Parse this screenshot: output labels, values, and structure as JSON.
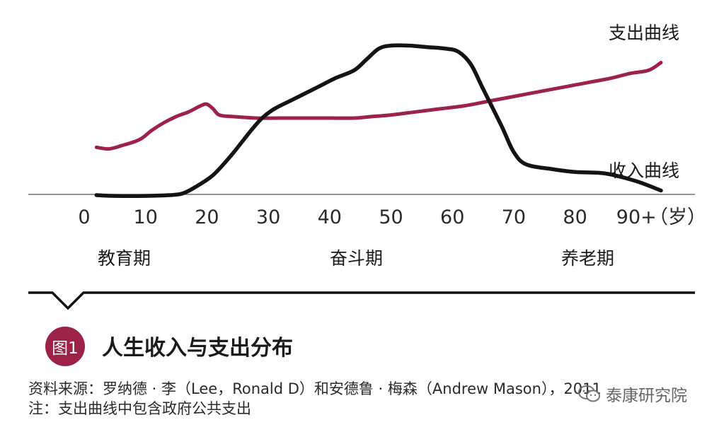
{
  "chart_data": {
    "type": "line",
    "xlim": [
      0,
      100
    ],
    "ylim": [
      0,
      100
    ],
    "x_ticks": [
      0,
      10,
      20,
      30,
      40,
      50,
      60,
      70,
      80,
      90
    ],
    "x_tick_labels": [
      "0",
      "10",
      "20",
      "30",
      "40",
      "50",
      "60",
      "70",
      "80",
      "90+"
    ],
    "x_unit_label": "（岁）",
    "series": [
      {
        "name": "支出曲线",
        "color": "#9c2247",
        "points": [
          [
            2,
            31
          ],
          [
            4,
            30
          ],
          [
            6,
            32
          ],
          [
            9,
            36
          ],
          [
            11,
            42
          ],
          [
            13,
            47
          ],
          [
            15,
            51
          ],
          [
            17,
            54
          ],
          [
            19,
            58
          ],
          [
            20,
            59
          ],
          [
            21,
            56
          ],
          [
            22,
            52
          ],
          [
            24,
            51
          ],
          [
            28,
            50
          ],
          [
            32,
            50
          ],
          [
            36,
            50
          ],
          [
            40,
            50
          ],
          [
            44,
            50
          ],
          [
            47,
            51
          ],
          [
            50,
            52
          ],
          [
            54,
            54
          ],
          [
            58,
            56
          ],
          [
            62,
            58
          ],
          [
            66,
            61
          ],
          [
            70,
            64
          ],
          [
            74,
            67
          ],
          [
            78,
            70
          ],
          [
            82,
            73
          ],
          [
            86,
            76
          ],
          [
            89,
            79
          ],
          [
            92,
            81
          ],
          [
            94,
            86
          ]
        ]
      },
      {
        "name": "收入曲线",
        "color": "#141414",
        "points": [
          [
            2,
            0
          ],
          [
            5,
            -0.5
          ],
          [
            10,
            -0.5
          ],
          [
            14,
            0
          ],
          [
            16,
            1
          ],
          [
            18,
            5
          ],
          [
            21,
            13
          ],
          [
            24,
            26
          ],
          [
            27,
            41
          ],
          [
            29,
            50
          ],
          [
            31,
            56
          ],
          [
            34,
            62
          ],
          [
            38,
            70
          ],
          [
            41,
            76
          ],
          [
            44,
            81
          ],
          [
            46,
            88
          ],
          [
            48,
            95
          ],
          [
            50,
            97
          ],
          [
            53,
            97
          ],
          [
            56,
            96
          ],
          [
            59,
            95
          ],
          [
            61,
            93
          ],
          [
            63,
            85
          ],
          [
            65,
            69
          ],
          [
            68,
            45
          ],
          [
            70,
            28
          ],
          [
            72,
            20
          ],
          [
            76,
            17
          ],
          [
            80,
            15
          ],
          [
            85,
            14
          ],
          [
            90,
            9
          ],
          [
            94,
            3
          ]
        ]
      }
    ],
    "stages": [
      "教育期",
      "奋斗期",
      "养老期"
    ]
  },
  "figure": {
    "badge": "图1",
    "title": "人生收入与支出分布"
  },
  "notes": {
    "source": "资料来源：罗纳德 · 李（Lee，Ronald D）和安德鲁 · 梅森（Andrew Mason），2011",
    "note": "注：支出曲线中包含政府公共支出"
  },
  "watermark": {
    "text": "泰康研究院",
    "icon": "wechat-icon"
  }
}
